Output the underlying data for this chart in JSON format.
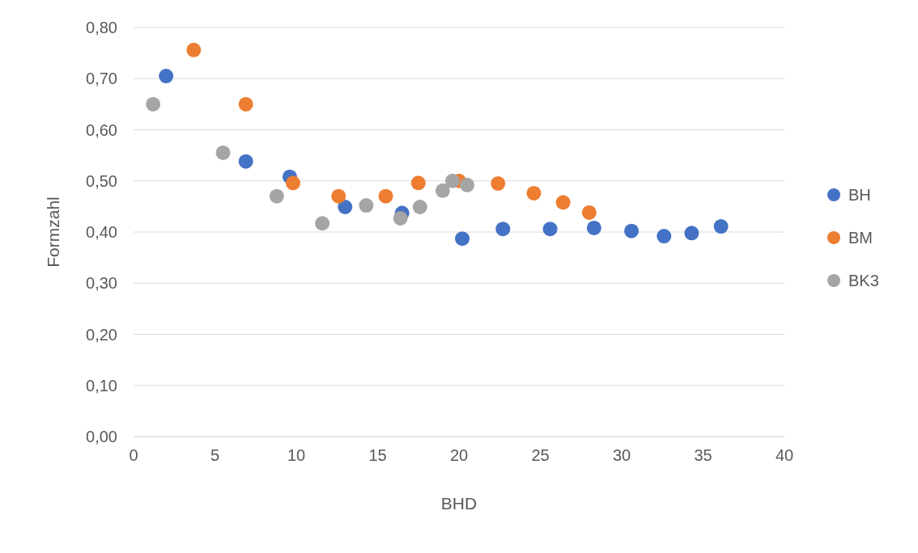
{
  "chart_data": {
    "type": "scatter",
    "xlabel": "BHD",
    "ylabel": "Formzahl",
    "xlim": [
      0,
      40
    ],
    "xticks": [
      0,
      5,
      10,
      15,
      20,
      25,
      30,
      35,
      40
    ],
    "ylim": [
      0,
      0.8
    ],
    "yticks": [
      {
        "value": 0,
        "label": "0,00"
      },
      {
        "value": 0.1,
        "label": "0,10"
      },
      {
        "value": 0.2,
        "label": "0,20"
      },
      {
        "value": 0.3,
        "label": "0,30"
      },
      {
        "value": 0.4,
        "label": "0,40"
      },
      {
        "value": 0.5,
        "label": "0,50"
      },
      {
        "value": 0.6,
        "label": "0,60"
      },
      {
        "value": 0.7,
        "label": "0,70"
      },
      {
        "value": 0.8,
        "label": "0,80"
      }
    ],
    "grid": "y",
    "legend": "right",
    "marker": "circle",
    "series": [
      {
        "name": "BH",
        "color": "#4472c4",
        "x": [
          2.0,
          6.9,
          9.6,
          13.0,
          16.5,
          20.2,
          22.7,
          25.6,
          28.3,
          30.6,
          32.6,
          34.3,
          36.1
        ],
        "values": [
          0.705,
          0.538,
          0.508,
          0.449,
          0.437,
          0.387,
          0.406,
          0.406,
          0.408,
          0.402,
          0.392,
          0.398,
          0.411
        ]
      },
      {
        "name": "BM",
        "color": "#ed7d31",
        "x": [
          3.7,
          6.9,
          9.8,
          12.6,
          15.5,
          17.5,
          20.0,
          22.4,
          24.6,
          26.4,
          28.0
        ],
        "values": [
          0.756,
          0.65,
          0.496,
          0.47,
          0.47,
          0.496,
          0.5,
          0.495,
          0.476,
          0.458,
          0.438
        ]
      },
      {
        "name": "BK3",
        "color": "#a5a5a5",
        "x": [
          1.2,
          5.5,
          8.8,
          11.6,
          14.3,
          16.4,
          17.6,
          19.0,
          19.6,
          20.5
        ],
        "values": [
          0.65,
          0.555,
          0.47,
          0.417,
          0.452,
          0.427,
          0.449,
          0.481,
          0.5,
          0.492
        ]
      }
    ]
  }
}
